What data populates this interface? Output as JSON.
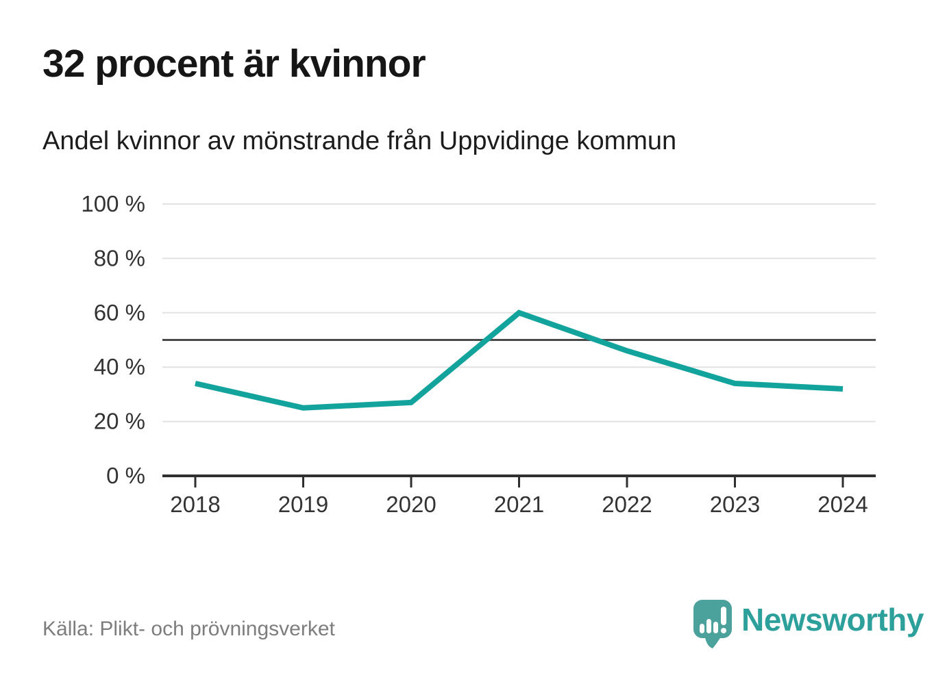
{
  "header": {
    "title": "32 procent är kvinnor",
    "subtitle": "Andel kvinnor av mönstrande från Uppvidinge kommun"
  },
  "chart_data": {
    "type": "line",
    "title": "Andel kvinnor av mönstrande från Uppvidinge kommun",
    "x": [
      "2018",
      "2019",
      "2020",
      "2021",
      "2022",
      "2023",
      "2024"
    ],
    "series": [
      {
        "name": "Andel kvinnor",
        "values": [
          34,
          25,
          27,
          60,
          46,
          34,
          32
        ],
        "color": "#12a39c"
      }
    ],
    "ylim": [
      0,
      100
    ],
    "yticks": [
      0,
      20,
      40,
      60,
      80,
      100
    ],
    "ytick_format": "{v} %",
    "reference_line": 50,
    "grid": true,
    "legend": "none",
    "unit": "%"
  },
  "footer": {
    "source": "Källa: Plikt- och prövningsverket",
    "brand": "Newsworthy"
  },
  "colors": {
    "line": "#12a39c",
    "gridline": "#e2e2e2",
    "reference_line": "#4a4a4a",
    "axis": "#2f2f2f",
    "tick_label": "#333333",
    "brand_teal": "#4ba19b"
  }
}
